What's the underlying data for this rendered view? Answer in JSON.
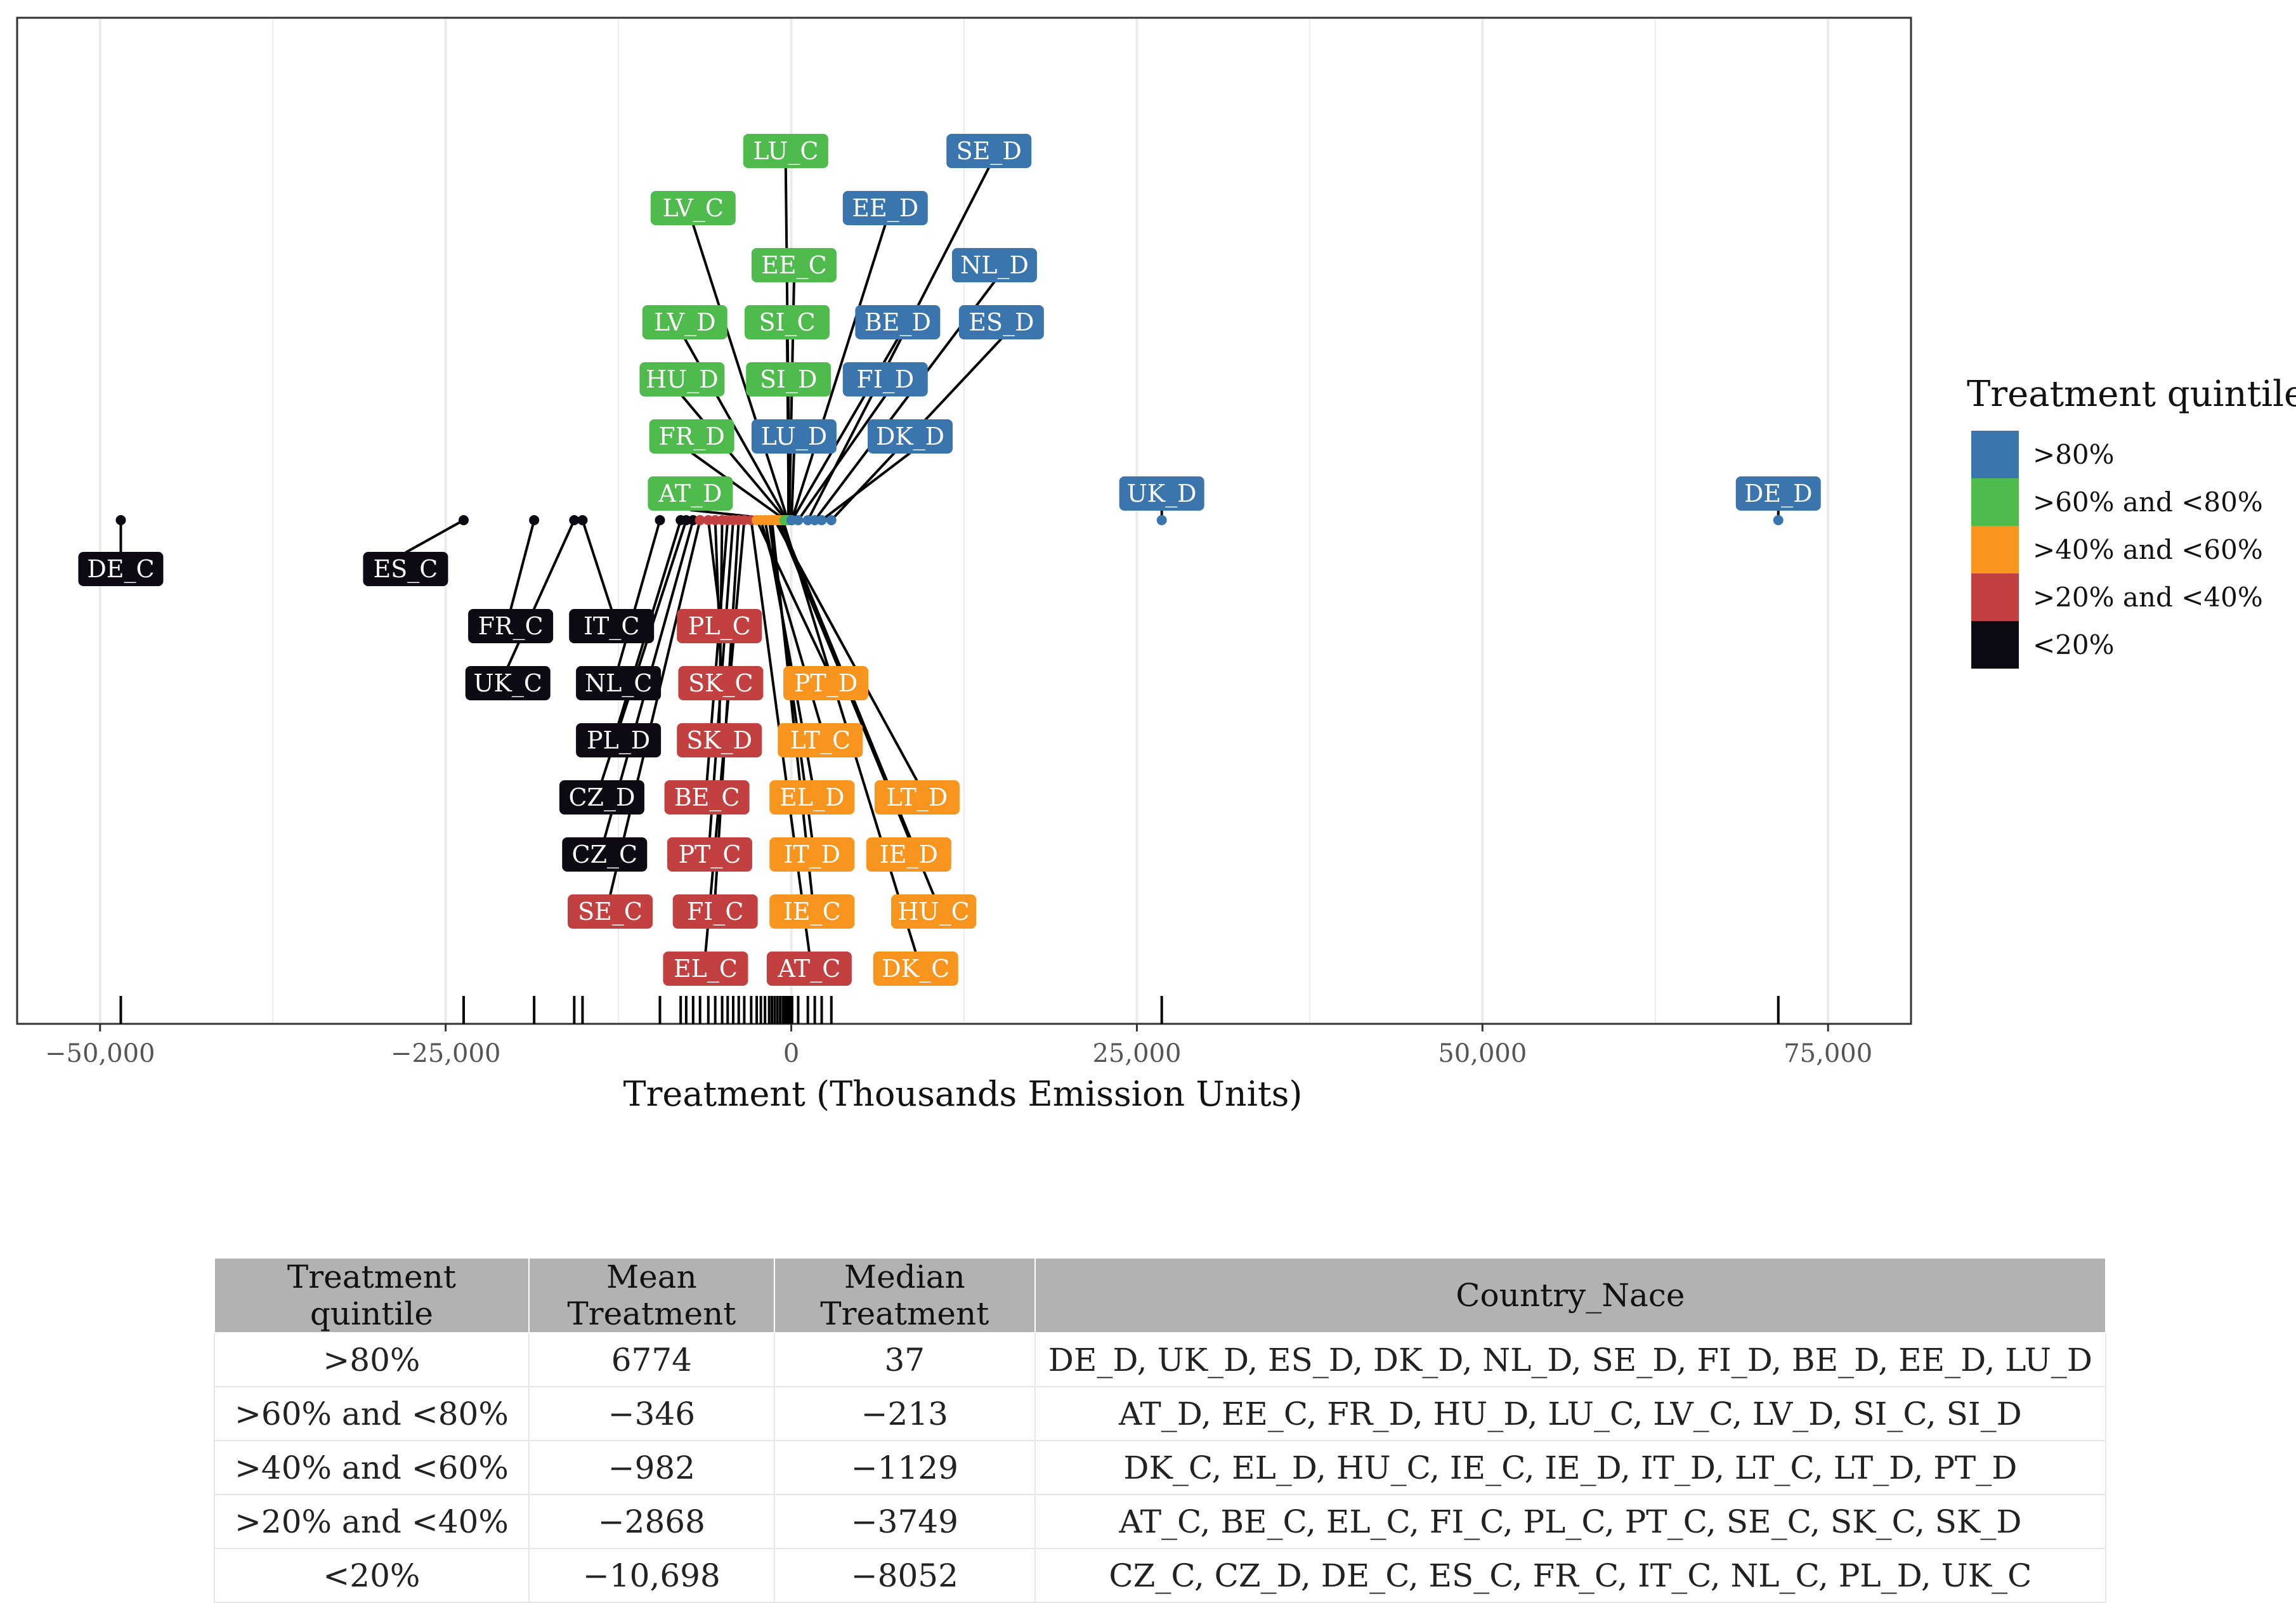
{
  "chart_data": {
    "type": "scatter",
    "xlabel": "Treatment (Thousands Emission Units)",
    "ylabel": "",
    "xlim": [
      -56000,
      81000
    ],
    "x_ticks": [
      -50000,
      -25000,
      0,
      25000,
      50000,
      75000
    ],
    "x_tick_labels": [
      "−50,000",
      "−25,000",
      "0",
      "25,000",
      "50,000",
      "75,000"
    ],
    "grid": true,
    "rug": true,
    "legend": {
      "title": "Treatment quintile",
      "placement": "right",
      "entries": [
        {
          "label": ">80%",
          "color": "#3a75ad"
        },
        {
          "label": ">60% and <80%",
          "color": "#4ebb4c"
        },
        {
          "label": ">40% and <60%",
          "color": "#f7951f"
        },
        {
          "label": ">20% and <40%",
          "color": "#c2403f"
        },
        {
          "label": "<20%",
          "color": "#0d0a14"
        }
      ]
    },
    "points": [
      {
        "label": "DE_C",
        "x": -48500,
        "group": "<20%",
        "label_x": -48500,
        "label_side": "below",
        "label_rank": 1
      },
      {
        "label": "ES_C",
        "x": -23700,
        "group": "<20%",
        "label_x": -27900,
        "label_side": "below",
        "label_rank": 1
      },
      {
        "label": "FR_C",
        "x": -18600,
        "group": "<20%",
        "label_x": -20300,
        "label_side": "below",
        "label_rank": 2
      },
      {
        "label": "UK_C",
        "x": -15700,
        "group": "<20%",
        "label_x": -20500,
        "label_side": "below",
        "label_rank": 3
      },
      {
        "label": "IT_C",
        "x": -15100,
        "group": "<20%",
        "label_x": -13000,
        "label_side": "below",
        "label_rank": 2
      },
      {
        "label": "NL_C",
        "x": -9500,
        "group": "<20%",
        "label_x": -12500,
        "label_side": "below",
        "label_rank": 3
      },
      {
        "label": "PL_D",
        "x": -8000,
        "group": "<20%",
        "label_x": -12500,
        "label_side": "below",
        "label_rank": 4
      },
      {
        "label": "CZ_D",
        "x": -7600,
        "group": "<20%",
        "label_x": -13700,
        "label_side": "below",
        "label_rank": 5
      },
      {
        "label": "CZ_C",
        "x": -7100,
        "group": "<20%",
        "label_x": -13500,
        "label_side": "below",
        "label_rank": 6
      },
      {
        "label": "SE_C",
        "x": -6600,
        "group": ">20% and <40%",
        "label_x": -13100,
        "label_side": "below",
        "label_rank": 7
      },
      {
        "label": "PL_C",
        "x": -6000,
        "group": ">20% and <40%",
        "label_x": -5200,
        "label_side": "below",
        "label_rank": 2
      },
      {
        "label": "SK_C",
        "x": -5500,
        "group": ">20% and <40%",
        "label_x": -5100,
        "label_side": "below",
        "label_rank": 3
      },
      {
        "label": "SK_D",
        "x": -5000,
        "group": ">20% and <40%",
        "label_x": -5200,
        "label_side": "below",
        "label_rank": 4
      },
      {
        "label": "BE_C",
        "x": -4600,
        "group": ">20% and <40%",
        "label_x": -6100,
        "label_side": "below",
        "label_rank": 5
      },
      {
        "label": "PT_C",
        "x": -4200,
        "group": ">20% and <40%",
        "label_x": -5900,
        "label_side": "below",
        "label_rank": 6
      },
      {
        "label": "FI_C",
        "x": -3800,
        "group": ">20% and <40%",
        "label_x": -5500,
        "label_side": "below",
        "label_rank": 7
      },
      {
        "label": "EL_C",
        "x": -3400,
        "group": ">20% and <40%",
        "label_x": -6200,
        "label_side": "below",
        "label_rank": 8
      },
      {
        "label": "AT_C",
        "x": -2900,
        "group": ">20% and <40%",
        "label_x": 1300,
        "label_side": "below",
        "label_rank": 8
      },
      {
        "label": "PT_D",
        "x": -2500,
        "group": ">40% and <60%",
        "label_x": 2500,
        "label_side": "below",
        "label_rank": 3
      },
      {
        "label": "LT_C",
        "x": -2200,
        "group": ">40% and <60%",
        "label_x": 2100,
        "label_side": "below",
        "label_rank": 4
      },
      {
        "label": "EL_D",
        "x": -1900,
        "group": ">40% and <60%",
        "label_x": 1500,
        "label_side": "below",
        "label_rank": 5
      },
      {
        "label": "IT_D",
        "x": -1600,
        "group": ">40% and <60%",
        "label_x": 1500,
        "label_side": "below",
        "label_rank": 6
      },
      {
        "label": "IE_C",
        "x": -1400,
        "group": ">40% and <60%",
        "label_x": 1500,
        "label_side": "below",
        "label_rank": 7
      },
      {
        "label": "LT_D",
        "x": -1200,
        "group": ">40% and <60%",
        "label_x": 9100,
        "label_side": "below",
        "label_rank": 5
      },
      {
        "label": "IE_D",
        "x": -1000,
        "group": ">40% and <60%",
        "label_x": 8500,
        "label_side": "below",
        "label_rank": 6
      },
      {
        "label": "HU_C",
        "x": -800,
        "group": ">40% and <60%",
        "label_x": 10300,
        "label_side": "below",
        "label_rank": 7
      },
      {
        "label": "DK_C",
        "x": -600,
        "group": ">40% and <60%",
        "label_x": 9000,
        "label_side": "below",
        "label_rank": 8
      },
      {
        "label": "AT_D",
        "x": -500,
        "group": ">60% and <80%",
        "label_x": -7300,
        "label_side": "above",
        "label_rank": 1
      },
      {
        "label": "FR_D",
        "x": -420,
        "group": ">60% and <80%",
        "label_x": -7200,
        "label_side": "above",
        "label_rank": 2
      },
      {
        "label": "HU_D",
        "x": -350,
        "group": ">60% and <80%",
        "label_x": -7900,
        "label_side": "above",
        "label_rank": 3
      },
      {
        "label": "LV_D",
        "x": -300,
        "group": ">60% and <80%",
        "label_x": -7700,
        "label_side": "above",
        "label_rank": 4
      },
      {
        "label": "LV_C",
        "x": -250,
        "group": ">60% and <80%",
        "label_x": -7100,
        "label_side": "above",
        "label_rank": 6
      },
      {
        "label": "SI_D",
        "x": -213,
        "group": ">60% and <80%",
        "label_x": -200,
        "label_side": "above",
        "label_rank": 3
      },
      {
        "label": "SI_C",
        "x": -180,
        "group": ">60% and <80%",
        "label_x": -300,
        "label_side": "above",
        "label_rank": 4
      },
      {
        "label": "EE_C",
        "x": -150,
        "group": ">60% and <80%",
        "label_x": 200,
        "label_side": "above",
        "label_rank": 5
      },
      {
        "label": "LU_C",
        "x": -120,
        "group": ">60% and <80%",
        "label_x": -400,
        "label_side": "above",
        "label_rank": 7
      },
      {
        "label": "LU_D",
        "x": 20,
        "group": ">80%",
        "label_x": 200,
        "label_side": "above",
        "label_rank": 2
      },
      {
        "label": "EE_D",
        "x": 37,
        "group": ">80%",
        "label_x": 6800,
        "label_side": "above",
        "label_rank": 6
      },
      {
        "label": "BE_D",
        "x": 60,
        "group": ">80%",
        "label_x": 7700,
        "label_side": "above",
        "label_rank": 4
      },
      {
        "label": "FI_D",
        "x": 500,
        "group": ">80%",
        "label_x": 6800,
        "label_side": "above",
        "label_rank": 3
      },
      {
        "label": "SE_D",
        "x": 1200,
        "group": ">80%",
        "label_x": 14300,
        "label_side": "above",
        "label_rank": 7
      },
      {
        "label": "NL_D",
        "x": 1700,
        "group": ">80%",
        "label_x": 14700,
        "label_side": "above",
        "label_rank": 5
      },
      {
        "label": "DK_D",
        "x": 2200,
        "group": ">80%",
        "label_x": 8600,
        "label_side": "above",
        "label_rank": 2
      },
      {
        "label": "ES_D",
        "x": 2900,
        "group": ">80%",
        "label_x": 15200,
        "label_side": "above",
        "label_rank": 4
      },
      {
        "label": "UK_D",
        "x": 26800,
        "group": ">80%",
        "label_x": 26800,
        "label_side": "above",
        "label_rank": 1
      },
      {
        "label": "DE_D",
        "x": 71400,
        "group": ">80%",
        "label_x": 71400,
        "label_side": "above",
        "label_rank": 1
      }
    ]
  },
  "table": {
    "headers": [
      "Treatment quintile",
      "Mean Treatment",
      "Median Treatment",
      "Country_Nace"
    ],
    "rows": [
      {
        "quintile": ">80%",
        "mean": "6774",
        "median": "37",
        "countries": "DE_D, UK_D, ES_D, DK_D, NL_D, SE_D, FI_D, BE_D, EE_D, LU_D"
      },
      {
        "quintile": ">60% and <80%",
        "mean": "−346",
        "median": "−213",
        "countries": "AT_D, EE_C, FR_D, HU_D, LU_C, LV_C, LV_D, SI_C, SI_D"
      },
      {
        "quintile": ">40% and <60%",
        "mean": "−982",
        "median": "−1129",
        "countries": "DK_C, EL_D, HU_C, IE_C, IE_D, IT_D, LT_C, LT_D, PT_D"
      },
      {
        "quintile": ">20% and <40%",
        "mean": "−2868",
        "median": "−3749",
        "countries": "AT_C, BE_C, EL_C, FI_C, PL_C, PT_C, SE_C, SK_C, SK_D"
      },
      {
        "quintile": "<20%",
        "mean": "−10,698",
        "median": "−8052",
        "countries": "CZ_C, CZ_D, DE_C, ES_C, FR_C, IT_C, NL_C, PL_D, UK_C"
      }
    ]
  }
}
